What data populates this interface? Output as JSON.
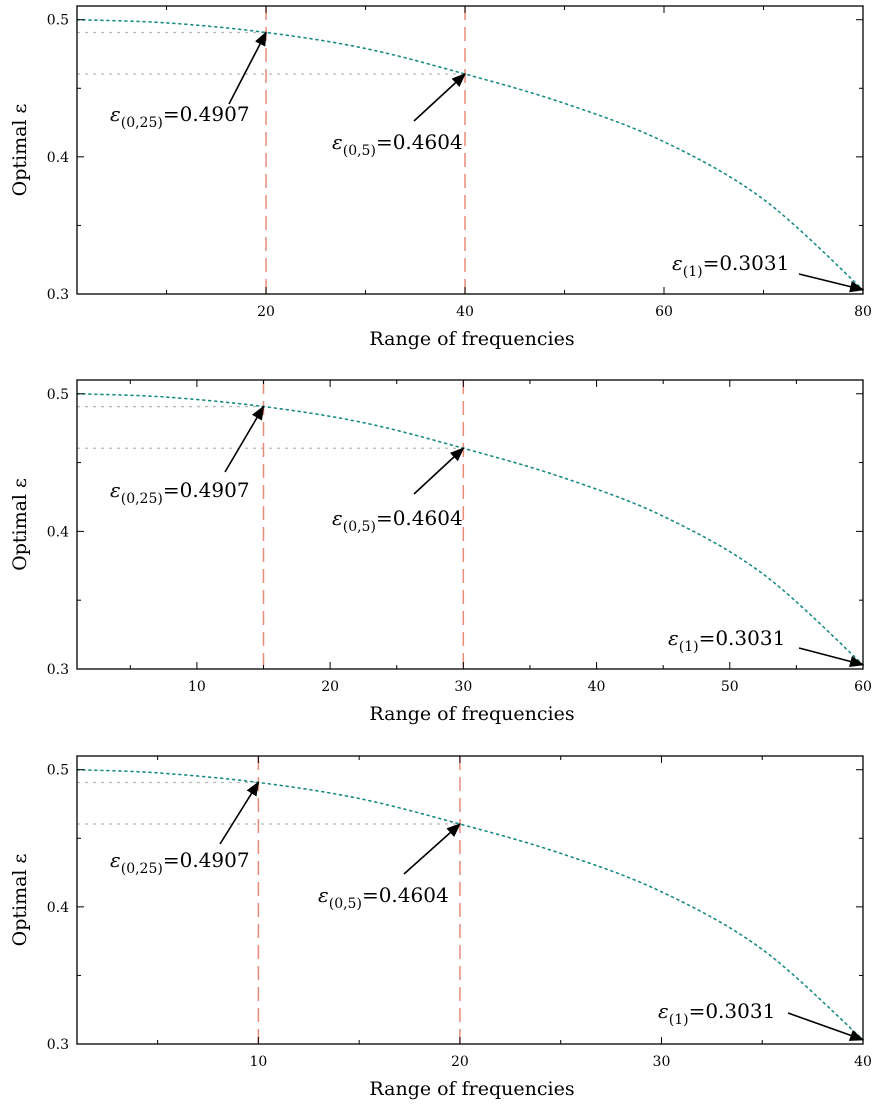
{
  "chart_data": [
    {
      "type": "line",
      "xlabel": "Range of frequencies",
      "ylabel": "Optimal ε",
      "xlim": [
        1,
        80
      ],
      "ylim": [
        0.3,
        0.51
      ],
      "xticks": [
        20,
        40,
        60,
        80
      ],
      "yticks": [
        0.3,
        0.4,
        0.5
      ],
      "series": [
        {
          "color": "#1a8c86",
          "style": "dotted",
          "x": [
            1,
            10,
            20,
            30,
            40,
            50,
            60,
            70,
            80
          ],
          "y": [
            0.5,
            0.4977,
            0.4907,
            0.479,
            0.4604,
            0.439,
            0.411,
            0.369,
            0.3031
          ]
        }
      ],
      "vlines": [
        20,
        40
      ],
      "vline_color": "#e98b78",
      "hlines": [
        {
          "y": 0.4907,
          "x_end": 20
        },
        {
          "y": 0.4604,
          "x_end": 40
        }
      ],
      "annotations": [
        {
          "sym": "ε",
          "sub": "(0,25)",
          "value": "=0.4907",
          "xy": [
            20,
            0.4907
          ]
        },
        {
          "sym": "ε",
          "sub": "(0,5)",
          "value": "=0.4604",
          "xy": [
            40,
            0.4604
          ]
        },
        {
          "sym": "ε",
          "sub": "(1)",
          "value": "=0.3031",
          "xy": [
            80,
            0.3031
          ]
        }
      ]
    },
    {
      "type": "line",
      "xlabel": "Range of frequencies",
      "ylabel": "Optimal ε",
      "xlim": [
        1,
        60
      ],
      "ylim": [
        0.3,
        0.51
      ],
      "xticks": [
        10,
        20,
        30,
        40,
        50,
        60
      ],
      "yticks": [
        0.3,
        0.4,
        0.5
      ],
      "series": [
        {
          "color": "#1a8c86",
          "style": "dotted",
          "x": [
            1,
            7.5,
            15,
            22.5,
            30,
            37.5,
            45,
            52.5,
            60
          ],
          "y": [
            0.5,
            0.4977,
            0.4907,
            0.479,
            0.4604,
            0.439,
            0.411,
            0.369,
            0.3031
          ]
        }
      ],
      "vlines": [
        15,
        30
      ],
      "vline_color": "#e98b78",
      "hlines": [
        {
          "y": 0.4907,
          "x_end": 15
        },
        {
          "y": 0.4604,
          "x_end": 30
        }
      ],
      "annotations": [
        {
          "sym": "ε",
          "sub": "(0,25)",
          "value": "=0.4907",
          "xy": [
            15,
            0.4907
          ]
        },
        {
          "sym": "ε",
          "sub": "(0,5)",
          "value": "=0.4604",
          "xy": [
            30,
            0.4604
          ]
        },
        {
          "sym": "ε",
          "sub": "(1)",
          "value": "=0.3031",
          "xy": [
            60,
            0.3031
          ]
        }
      ]
    },
    {
      "type": "line",
      "xlabel": "Range of frequencies",
      "ylabel": "Optimal ε",
      "xlim": [
        1,
        40
      ],
      "ylim": [
        0.3,
        0.51
      ],
      "xticks": [
        10,
        20,
        30,
        40
      ],
      "yticks": [
        0.3,
        0.4,
        0.5
      ],
      "series": [
        {
          "color": "#1a8c86",
          "style": "dotted",
          "x": [
            1,
            5,
            10,
            15,
            20,
            25,
            30,
            35,
            40
          ],
          "y": [
            0.5,
            0.4977,
            0.4907,
            0.479,
            0.4604,
            0.439,
            0.411,
            0.369,
            0.3031
          ]
        }
      ],
      "vlines": [
        10,
        20
      ],
      "vline_color": "#e98b78",
      "hlines": [
        {
          "y": 0.4907,
          "x_end": 10
        },
        {
          "y": 0.4604,
          "x_end": 20
        }
      ],
      "annotations": [
        {
          "sym": "ε",
          "sub": "(0,25)",
          "value": "=0.4907",
          "xy": [
            10,
            0.4907
          ]
        },
        {
          "sym": "ε",
          "sub": "(0,5)",
          "value": "=0.4604",
          "xy": [
            20,
            0.4604
          ]
        },
        {
          "sym": "ε",
          "sub": "(1)",
          "value": "=0.3031",
          "xy": [
            40,
            0.3031
          ]
        }
      ]
    }
  ]
}
